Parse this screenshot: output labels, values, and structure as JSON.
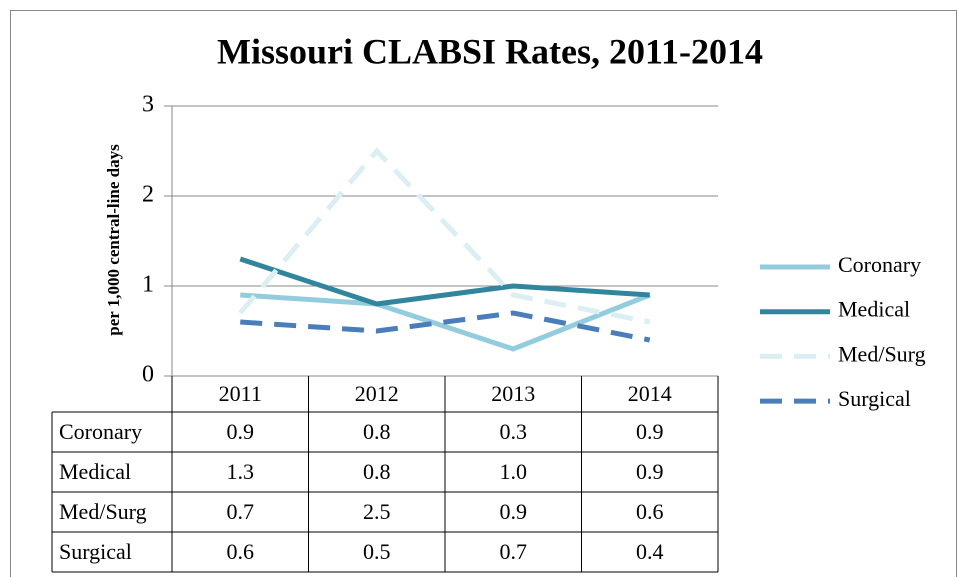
{
  "chart_data": {
    "type": "line",
    "title": "Missouri CLABSI Rates, 2011-2014",
    "y_label": "per 1,000 central-line days",
    "categories": [
      "2011",
      "2012",
      "2013",
      "2014"
    ],
    "series": [
      {
        "name": "Coronary",
        "color": "#93cddd",
        "dash": false,
        "values": [
          0.9,
          0.8,
          0.3,
          0.9
        ]
      },
      {
        "name": "Medical",
        "color": "#31859c",
        "dash": false,
        "values": [
          1.3,
          0.8,
          1,
          0.9
        ],
        "value_labels": [
          "1.3",
          "0.8",
          "1.0",
          "0.9"
        ]
      },
      {
        "name": "Med/Surg",
        "color": "#dbeef4",
        "dash": true,
        "values": [
          0.7,
          2.5,
          0.9,
          0.6
        ]
      },
      {
        "name": "Surgical",
        "color": "#4a7ebb",
        "dash": true,
        "values": [
          0.6,
          0.5,
          0.7,
          0.4
        ]
      }
    ],
    "ylim": [
      0,
      3
    ],
    "yticks": [
      0,
      1,
      2,
      3
    ],
    "grid": true,
    "legend": "right",
    "data_table": true
  }
}
